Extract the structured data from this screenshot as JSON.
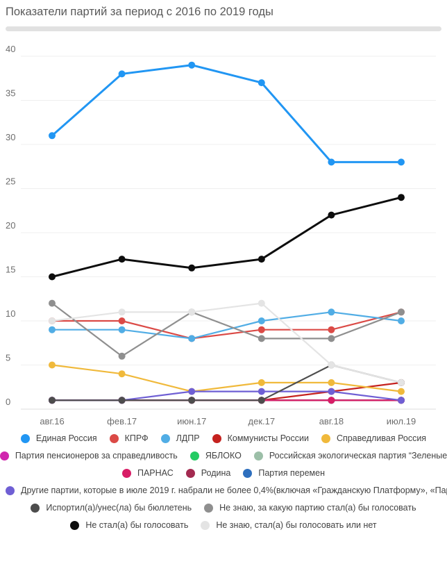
{
  "chart_data": {
    "type": "line",
    "title": "Показатели партий за период с 2016 по 2019 годы",
    "categories": [
      "авг.16",
      "фев.17",
      "июн.17",
      "дек.17",
      "авг.18",
      "июл.19"
    ],
    "y_ticks": [
      0,
      5,
      10,
      15,
      20,
      25,
      30,
      35,
      40
    ],
    "ylim": [
      0,
      42
    ],
    "grid": true,
    "legend_position": "bottom",
    "series": [
      {
        "name": "Единая Россия",
        "color": "#2196f3",
        "values": [
          31,
          38,
          39,
          37,
          28,
          28
        ]
      },
      {
        "name": "КПРФ",
        "color": "#db4a46",
        "values": [
          10,
          10,
          8,
          9,
          9,
          11
        ]
      },
      {
        "name": "ЛДПР",
        "color": "#51ade5",
        "values": [
          9,
          9,
          8,
          10,
          11,
          10
        ]
      },
      {
        "name": "Коммунисты России",
        "color": "#c5221f",
        "values": [
          1,
          1,
          1,
          1,
          2,
          3
        ]
      },
      {
        "name": "Справедливая Россия",
        "color": "#f0b93b",
        "values": [
          5,
          4,
          2,
          3,
          3,
          2
        ]
      },
      {
        "name": "Партия пенсионеров за справедливость",
        "color": "#d026ae",
        "values": [
          1,
          1,
          1,
          1,
          1,
          1
        ]
      },
      {
        "name": "ЯБЛОКО",
        "color": "#24cb63",
        "values": [
          1,
          1,
          1,
          1,
          1,
          1
        ]
      },
      {
        "name": "Российская экологическая партия “Зеленые",
        "color": "#9cbfa8",
        "values": [
          1,
          1,
          1,
          1,
          1,
          1
        ]
      },
      {
        "name": "ПАРНАС",
        "color": "#d81d66",
        "values": [
          1,
          1,
          1,
          1,
          1,
          1
        ]
      },
      {
        "name": "Родина",
        "color": "#a32a50",
        "values": [
          1,
          1,
          1,
          1,
          1,
          1
        ]
      },
      {
        "name": "Партия перемен",
        "color": "#2e6fbe",
        "values": [
          1,
          1,
          1,
          1,
          1,
          1
        ]
      },
      {
        "name": "Другие партии, которые в июле 2019 г. набрали не более 0,4%(включая «Гражданскую Платформу», «Пар...",
        "color": "#6f5fd4",
        "values": [
          1,
          1,
          2,
          2,
          2,
          1
        ]
      },
      {
        "name": "Испортил(а)/унес(ла) бы бюллетень",
        "color": "#4d4d4d",
        "values": [
          1,
          1,
          1,
          1,
          5,
          3
        ]
      },
      {
        "name": "Не знаю, за какую партию стал(а) бы голосовать",
        "color": "#8f8f8f",
        "values": [
          12,
          6,
          11,
          8,
          8,
          11
        ]
      },
      {
        "name": "Не стал(а) бы голосовать",
        "color": "#0d0d0d",
        "values": [
          15,
          17,
          16,
          17,
          22,
          24
        ]
      },
      {
        "name": "Не знаю, стал(а) бы голосовать или нет",
        "color": "#e4e4e4",
        "values": [
          10,
          11,
          11,
          12,
          5,
          3
        ]
      }
    ],
    "legend_rows": [
      [
        0,
        1,
        2,
        3,
        4
      ],
      [
        5,
        6,
        7
      ],
      [
        8,
        9,
        10
      ],
      [
        11
      ],
      [
        12,
        13
      ],
      [
        14,
        15
      ]
    ],
    "draw_order": [
      0,
      1,
      2,
      3,
      4,
      5,
      6,
      7,
      10,
      9,
      8,
      11,
      12,
      13,
      14,
      15
    ],
    "axis_text_color": "#6d6d6d",
    "gridline_color": "#efefef"
  }
}
